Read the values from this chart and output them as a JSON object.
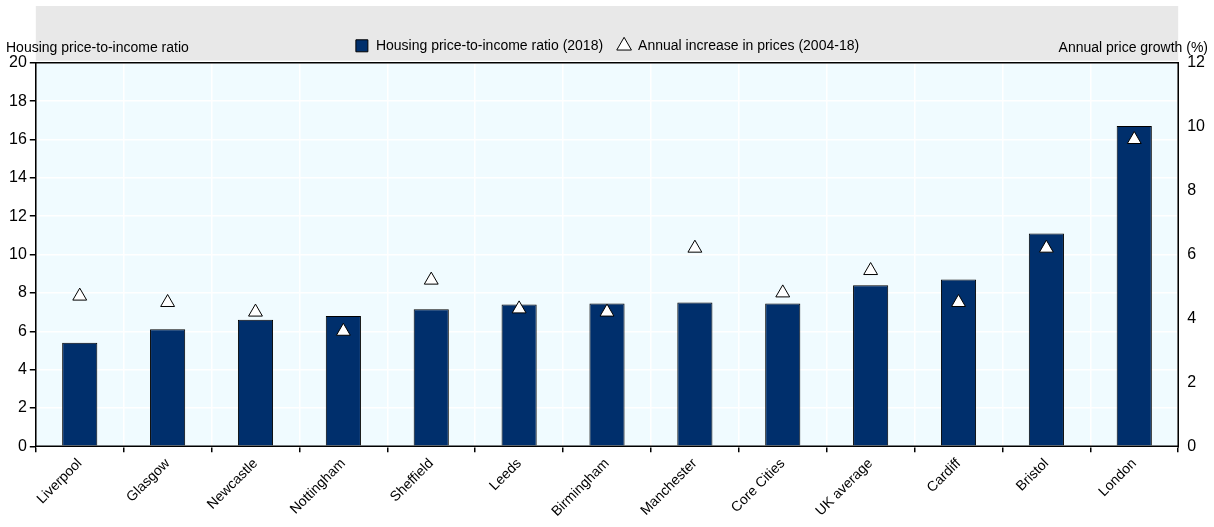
{
  "chart_data": {
    "type": "bar",
    "ylabel": "Housing price-to-income ratio",
    "y2label": "Annual price growth (%)",
    "categories": [
      "Liverpool",
      "Glasgow",
      "Newcastle",
      "Nottingham",
      "Sheffield",
      "Leeds",
      "Birmingham",
      "Manchester",
      "Core Cities",
      "UK average",
      "Cardiff",
      "Bristol",
      "London"
    ],
    "series": [
      {
        "name": "Housing price-to-income ratio (2018)",
        "color": "#002f6c",
        "values": [
          5.4,
          6.1,
          6.6,
          6.8,
          7.15,
          7.4,
          7.45,
          7.5,
          7.45,
          8.4,
          8.7,
          11.1,
          16.7
        ]
      },
      {
        "name": "Annual increase in prices (2004-18)",
        "type": "scatter",
        "axis": "y2",
        "color": "#ffffff",
        "marker": "triangle",
        "x": [
          "Liverpool",
          "Glasgow",
          "Newcastle",
          "Nottingham",
          "Sheffield",
          "Leeds",
          "Birmingham",
          "Manchester",
          "Core Cities",
          "UK average",
          "Cardiff",
          "Bristol",
          "London"
        ],
        "values": [
          4.7,
          4.5,
          4.2,
          3.6,
          5.2,
          4.3,
          4.2,
          6.2,
          4.8,
          5.5,
          4.5,
          6.2,
          9.6
        ]
      }
    ],
    "ylim": [
      0,
      20
    ],
    "yticks": [
      0,
      2,
      4,
      6,
      8,
      10,
      12,
      14,
      16,
      18,
      20
    ],
    "y2lim": [
      0,
      12
    ],
    "y2ticks": [
      0,
      2,
      4,
      6,
      8,
      10,
      12
    ],
    "grid": true,
    "legend": "top"
  }
}
